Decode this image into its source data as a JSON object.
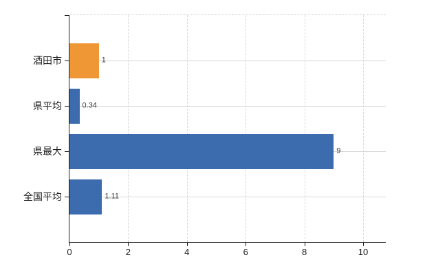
{
  "chart_data": {
    "type": "bar",
    "orientation": "horizontal",
    "title": "",
    "categories": [
      "酒田市",
      "県平均",
      "県最大",
      "全国平均"
    ],
    "values": [
      1,
      0.34,
      9,
      1.11
    ],
    "value_labels": [
      "1",
      "0.34",
      "9",
      "1.11"
    ],
    "bar_colors": [
      "#ef9735",
      "#3c6cae",
      "#3c6cae",
      "#3c6cae"
    ],
    "x_tick_values": [
      0,
      2,
      4,
      6,
      8,
      10
    ],
    "x_tick_labels": [
      "0",
      "2",
      "4",
      "6",
      "8",
      "10"
    ],
    "xlim": [
      0,
      10.8
    ],
    "grid": true,
    "legend": false,
    "colors": {
      "highlight_bar": "#ef9735",
      "default_bar": "#3c6cae",
      "grid": "#d7d7d7",
      "axis": "#1a1a1a",
      "value_label": "#3a3a3a"
    }
  }
}
